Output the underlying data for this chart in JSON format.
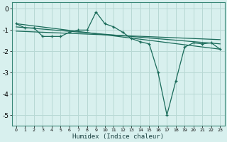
{
  "xlabel": "Humidex (Indice chaleur)",
  "bg_color": "#d8f0ee",
  "grid_color": "#b8d8d4",
  "line_color": "#1a6b5a",
  "xlim": [
    -0.5,
    23.5
  ],
  "ylim": [
    -5.5,
    0.3
  ],
  "yticks": [
    0,
    -1,
    -2,
    -3,
    -4,
    -5
  ],
  "xticks": [
    0,
    1,
    2,
    3,
    4,
    5,
    6,
    7,
    8,
    9,
    10,
    11,
    12,
    13,
    14,
    15,
    16,
    17,
    18,
    19,
    20,
    21,
    22,
    23
  ],
  "series1_x": [
    0,
    1,
    2,
    3,
    4,
    5,
    6,
    7,
    8,
    9,
    10,
    11,
    12,
    13,
    14,
    15,
    16,
    17,
    18,
    19,
    20,
    21,
    22,
    23
  ],
  "series1_y": [
    -0.7,
    -0.9,
    -0.9,
    -1.3,
    -1.3,
    -1.3,
    -1.1,
    -1.0,
    -1.0,
    -0.15,
    -0.7,
    -0.85,
    -1.1,
    -1.4,
    -1.55,
    -1.65,
    -3.0,
    -5.0,
    -3.4,
    -1.8,
    -1.6,
    -1.65,
    -1.6,
    -1.9
  ],
  "series2_x": [
    0,
    23
  ],
  "series2_y": [
    -0.7,
    -1.9
  ],
  "series3_x": [
    0,
    23
  ],
  "series3_y": [
    -0.85,
    -1.65
  ],
  "series4_x": [
    0,
    23
  ],
  "series4_y": [
    -1.05,
    -1.45
  ]
}
